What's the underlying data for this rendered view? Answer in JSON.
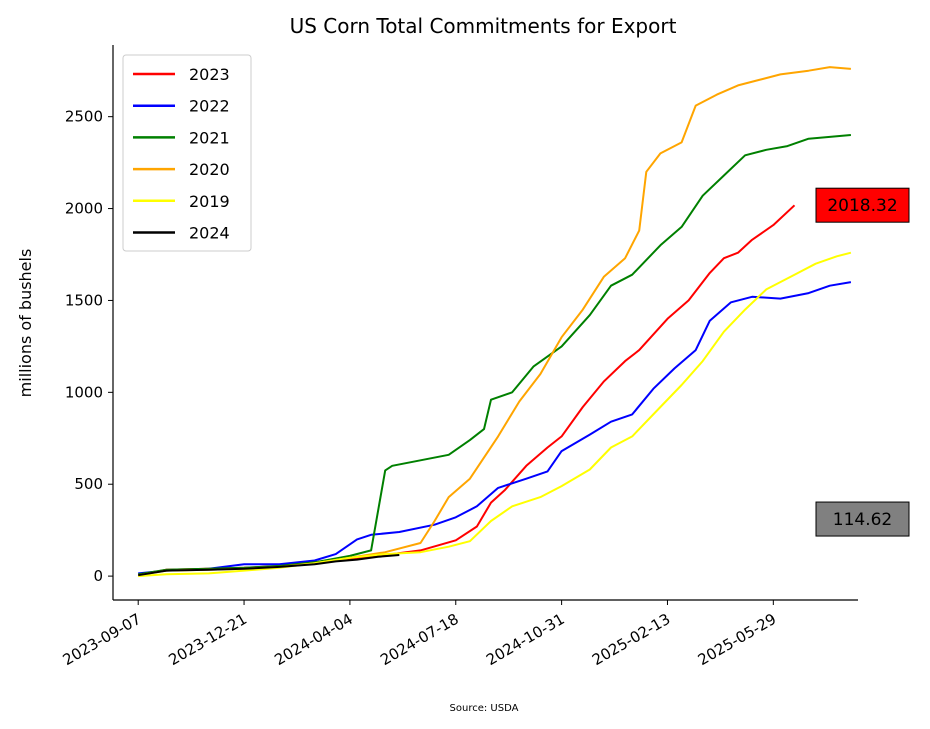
{
  "chart_data": {
    "type": "line",
    "title": "US Corn Total Commitments for Export",
    "xlabel": "",
    "ylabel": "millions of bushels",
    "source": "Source: USDA",
    "ylim": [
      -130,
      2890
    ],
    "yticks": [
      0,
      500,
      1000,
      1500,
      2000,
      2500
    ],
    "xticks": [
      "2023-09-07",
      "2023-12-21",
      "2024-04-04",
      "2024-07-18",
      "2024-10-31",
      "2025-02-13",
      "2025-05-29"
    ],
    "xlim": [
      "2023-08-13",
      "2025-08-21"
    ],
    "legend_position": "upper-left",
    "annotations": [
      {
        "text": "2018.32",
        "value": 2018.32,
        "color": "#ff0000"
      },
      {
        "text": "114.62",
        "value": 114.62,
        "color": "#808080"
      }
    ],
    "series": [
      {
        "name": "2023",
        "color": "#ff0000",
        "points": [
          [
            "2023-09-07",
            5
          ],
          [
            "2023-10-05",
            35
          ],
          [
            "2023-11-16",
            40
          ],
          [
            "2023-12-21",
            45
          ],
          [
            "2024-01-25",
            55
          ],
          [
            "2024-02-29",
            75
          ],
          [
            "2024-04-04",
            95
          ],
          [
            "2024-05-09",
            115
          ],
          [
            "2024-06-13",
            140
          ],
          [
            "2024-07-18",
            195
          ],
          [
            "2024-08-08",
            270
          ],
          [
            "2024-08-22",
            400
          ],
          [
            "2024-09-05",
            470
          ],
          [
            "2024-09-26",
            600
          ],
          [
            "2024-10-17",
            700
          ],
          [
            "2024-10-31",
            760
          ],
          [
            "2024-11-21",
            920
          ],
          [
            "2024-12-12",
            1060
          ],
          [
            "2025-01-02",
            1170
          ],
          [
            "2025-01-16",
            1230
          ],
          [
            "2025-02-13",
            1400
          ],
          [
            "2025-03-06",
            1500
          ],
          [
            "2025-03-27",
            1650
          ],
          [
            "2025-04-10",
            1730
          ],
          [
            "2025-04-24",
            1760
          ],
          [
            "2025-05-08",
            1830
          ],
          [
            "2025-05-29",
            1910
          ],
          [
            "2025-06-19",
            2018
          ]
        ]
      },
      {
        "name": "2022",
        "color": "#0000ff",
        "points": [
          [
            "2023-09-07",
            15
          ],
          [
            "2023-10-05",
            30
          ],
          [
            "2023-11-16",
            40
          ],
          [
            "2023-12-21",
            65
          ],
          [
            "2024-01-25",
            65
          ],
          [
            "2024-02-29",
            85
          ],
          [
            "2024-03-21",
            120
          ],
          [
            "2024-04-11",
            200
          ],
          [
            "2024-04-25",
            225
          ],
          [
            "2024-05-23",
            240
          ],
          [
            "2024-06-27",
            280
          ],
          [
            "2024-07-18",
            320
          ],
          [
            "2024-08-08",
            380
          ],
          [
            "2024-08-29",
            480
          ],
          [
            "2024-09-26",
            530
          ],
          [
            "2024-10-17",
            570
          ],
          [
            "2024-10-31",
            680
          ],
          [
            "2024-11-28",
            770
          ],
          [
            "2024-12-19",
            840
          ],
          [
            "2025-01-09",
            880
          ],
          [
            "2025-01-30",
            1020
          ],
          [
            "2025-02-20",
            1130
          ],
          [
            "2025-03-13",
            1230
          ],
          [
            "2025-03-27",
            1390
          ],
          [
            "2025-04-17",
            1490
          ],
          [
            "2025-05-08",
            1520
          ],
          [
            "2025-06-05",
            1510
          ],
          [
            "2025-07-03",
            1540
          ],
          [
            "2025-07-24",
            1580
          ],
          [
            "2025-08-14",
            1600
          ]
        ]
      },
      {
        "name": "2021",
        "color": "#008000",
        "points": [
          [
            "2023-09-07",
            10
          ],
          [
            "2023-10-05",
            35
          ],
          [
            "2023-11-16",
            40
          ],
          [
            "2023-12-21",
            45
          ],
          [
            "2024-01-25",
            55
          ],
          [
            "2024-02-29",
            75
          ],
          [
            "2024-04-04",
            110
          ],
          [
            "2024-04-25",
            140
          ],
          [
            "2024-05-09",
            575
          ],
          [
            "2024-05-16",
            600
          ],
          [
            "2024-06-13",
            630
          ],
          [
            "2024-07-11",
            660
          ],
          [
            "2024-08-01",
            740
          ],
          [
            "2024-08-15",
            800
          ],
          [
            "2024-08-22",
            960
          ],
          [
            "2024-09-12",
            1000
          ],
          [
            "2024-10-03",
            1140
          ],
          [
            "2024-10-31",
            1250
          ],
          [
            "2024-11-28",
            1420
          ],
          [
            "2024-12-19",
            1580
          ],
          [
            "2025-01-09",
            1640
          ],
          [
            "2025-02-06",
            1800
          ],
          [
            "2025-02-27",
            1900
          ],
          [
            "2025-03-20",
            2070
          ],
          [
            "2025-04-10",
            2180
          ],
          [
            "2025-05-01",
            2290
          ],
          [
            "2025-05-22",
            2320
          ],
          [
            "2025-06-12",
            2340
          ],
          [
            "2025-07-03",
            2380
          ],
          [
            "2025-07-24",
            2390
          ],
          [
            "2025-08-14",
            2400
          ]
        ]
      },
      {
        "name": "2020",
        "color": "#ffa500",
        "points": [
          [
            "2023-09-07",
            5
          ],
          [
            "2023-10-05",
            30
          ],
          [
            "2023-11-16",
            35
          ],
          [
            "2023-12-21",
            40
          ],
          [
            "2024-01-25",
            50
          ],
          [
            "2024-02-29",
            70
          ],
          [
            "2024-04-04",
            100
          ],
          [
            "2024-05-09",
            130
          ],
          [
            "2024-06-13",
            180
          ],
          [
            "2024-06-27",
            300
          ],
          [
            "2024-07-11",
            430
          ],
          [
            "2024-08-01",
            530
          ],
          [
            "2024-08-29",
            760
          ],
          [
            "2024-09-19",
            950
          ],
          [
            "2024-10-10",
            1100
          ],
          [
            "2024-10-31",
            1300
          ],
          [
            "2024-11-21",
            1450
          ],
          [
            "2024-12-12",
            1630
          ],
          [
            "2025-01-02",
            1730
          ],
          [
            "2025-01-16",
            1880
          ],
          [
            "2025-01-23",
            2200
          ],
          [
            "2025-02-06",
            2300
          ],
          [
            "2025-02-27",
            2360
          ],
          [
            "2025-03-13",
            2560
          ],
          [
            "2025-04-03",
            2620
          ],
          [
            "2025-04-24",
            2670
          ],
          [
            "2025-05-15",
            2700
          ],
          [
            "2025-06-05",
            2730
          ],
          [
            "2025-07-03",
            2750
          ],
          [
            "2025-07-24",
            2770
          ],
          [
            "2025-08-14",
            2760
          ]
        ]
      },
      {
        "name": "2019",
        "color": "#ffff00",
        "points": [
          [
            "2023-09-07",
            0
          ],
          [
            "2023-10-05",
            10
          ],
          [
            "2023-11-16",
            15
          ],
          [
            "2023-12-21",
            30
          ],
          [
            "2024-01-25",
            45
          ],
          [
            "2024-02-29",
            70
          ],
          [
            "2024-04-04",
            100
          ],
          [
            "2024-05-09",
            120
          ],
          [
            "2024-06-13",
            130
          ],
          [
            "2024-07-11",
            160
          ],
          [
            "2024-08-01",
            190
          ],
          [
            "2024-08-22",
            300
          ],
          [
            "2024-09-12",
            380
          ],
          [
            "2024-10-10",
            430
          ],
          [
            "2024-10-31",
            490
          ],
          [
            "2024-11-28",
            580
          ],
          [
            "2024-12-19",
            700
          ],
          [
            "2025-01-09",
            760
          ],
          [
            "2025-02-06",
            920
          ],
          [
            "2025-02-27",
            1040
          ],
          [
            "2025-03-20",
            1170
          ],
          [
            "2025-04-10",
            1330
          ],
          [
            "2025-05-01",
            1450
          ],
          [
            "2025-05-22",
            1560
          ],
          [
            "2025-06-19",
            1640
          ],
          [
            "2025-07-10",
            1700
          ],
          [
            "2025-07-31",
            1740
          ],
          [
            "2025-08-14",
            1760
          ]
        ]
      },
      {
        "name": "2024",
        "color": "#000000",
        "points": [
          [
            "2023-09-07",
            5
          ],
          [
            "2023-10-05",
            30
          ],
          [
            "2023-11-16",
            35
          ],
          [
            "2023-12-21",
            40
          ],
          [
            "2024-01-25",
            50
          ],
          [
            "2024-02-29",
            65
          ],
          [
            "2024-03-21",
            80
          ],
          [
            "2024-04-11",
            90
          ],
          [
            "2024-05-02",
            105
          ],
          [
            "2024-05-23",
            115
          ]
        ]
      }
    ]
  }
}
